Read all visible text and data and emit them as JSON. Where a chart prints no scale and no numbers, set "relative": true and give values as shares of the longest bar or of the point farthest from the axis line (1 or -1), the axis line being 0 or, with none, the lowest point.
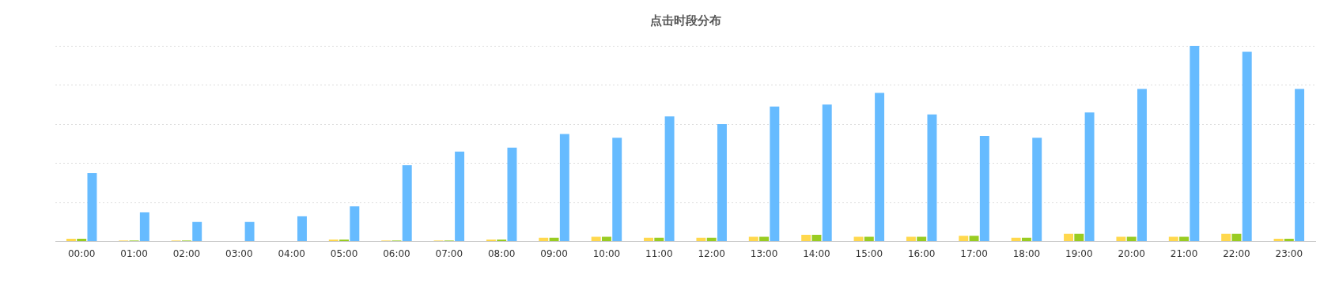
{
  "chart_data": {
    "type": "bar",
    "title": "点击时段分布",
    "relative": true,
    "grid": "y",
    "categories": [
      "00:00",
      "01:00",
      "02:00",
      "03:00",
      "04:00",
      "05:00",
      "06:00",
      "07:00",
      "08:00",
      "09:00",
      "10:00",
      "11:00",
      "12:00",
      "13:00",
      "14:00",
      "15:00",
      "16:00",
      "17:00",
      "18:00",
      "19:00",
      "20:00",
      "21:00",
      "22:00",
      "23:00"
    ],
    "series": [
      {
        "color": "#ffd84d",
        "values": [
          0.015,
          0.005,
          0.005,
          null,
          null,
          0.01,
          0.005,
          0.005,
          0.01,
          0.02,
          0.025,
          0.02,
          0.02,
          0.025,
          0.035,
          0.025,
          0.025,
          0.03,
          0.02,
          0.04,
          0.025,
          0.025,
          0.04,
          0.015
        ]
      },
      {
        "color": "#99cc22",
        "values": [
          0.015,
          0.005,
          0.005,
          null,
          null,
          0.01,
          0.005,
          0.005,
          0.01,
          0.02,
          0.025,
          0.02,
          0.02,
          0.025,
          0.035,
          0.025,
          0.025,
          0.03,
          0.02,
          0.04,
          0.025,
          0.025,
          0.04,
          0.015
        ]
      },
      {
        "color": "#66bbff",
        "values": [
          0.35,
          0.15,
          0.1,
          0.1,
          0.13,
          0.18,
          0.39,
          0.46,
          0.48,
          0.55,
          0.53,
          0.64,
          0.6,
          0.69,
          0.7,
          0.76,
          0.65,
          0.54,
          0.53,
          0.66,
          0.78,
          1,
          0.97,
          0.78
        ]
      }
    ]
  }
}
